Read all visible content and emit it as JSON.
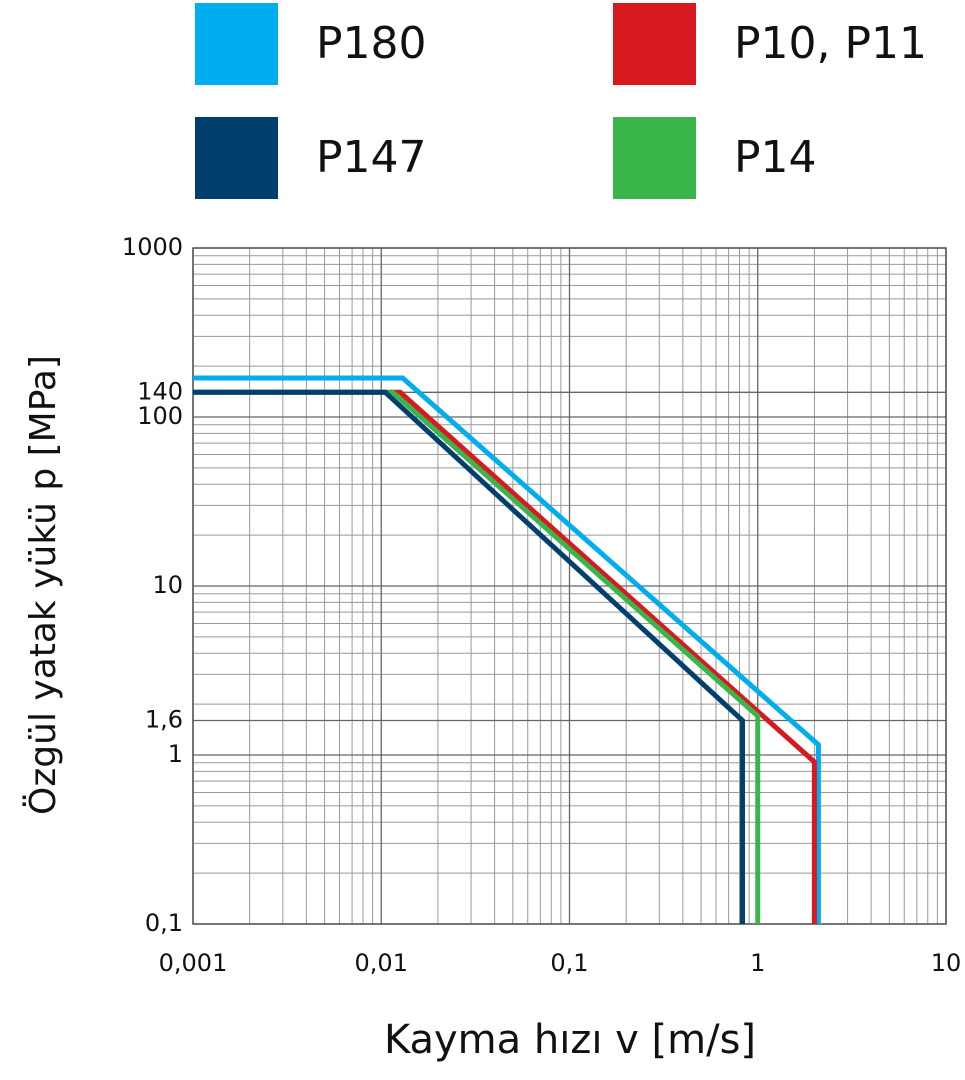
{
  "chart_data": {
    "type": "line",
    "x_label": "Kayma hızı v [m/s]",
    "y_label": "Özgül yatak yükü p [MPa]",
    "x_scale": "log",
    "y_scale": "log",
    "grid": true,
    "xlim": [
      0.001,
      10
    ],
    "ylim": [
      0.1,
      1000
    ],
    "xticks": [
      {
        "value": 0.001,
        "label": "0,001"
      },
      {
        "value": 0.01,
        "label": "0,01"
      },
      {
        "value": 0.1,
        "label": "0,1"
      },
      1,
      10
    ],
    "yticks": [
      {
        "value": 0.1,
        "label": "0,1"
      },
      1,
      {
        "value": 1.6,
        "label": "1,6"
      },
      10,
      100,
      140,
      1000
    ],
    "series": [
      {
        "name": "P180",
        "color": "#00aeef",
        "x": [
          0.001,
          0.013,
          2.1,
          2.1
        ],
        "values": [
          170,
          170,
          1.15,
          0.1
        ]
      },
      {
        "name": "P147",
        "color": "#003f6e",
        "x": [
          0.001,
          0.0105,
          0.83,
          0.83
        ],
        "values": [
          140,
          140,
          1.6,
          0.1
        ]
      },
      {
        "name": "P10, P11",
        "color": "#d71920",
        "x": [
          0.001,
          0.0126,
          2.0,
          2.0
        ],
        "values": [
          140,
          140,
          0.91,
          0.1
        ]
      },
      {
        "name": "P14",
        "color": "#39b54a",
        "x": [
          0.001,
          0.0115,
          1.0,
          1.0
        ],
        "values": [
          140,
          140,
          1.7,
          0.1
        ]
      }
    ]
  }
}
